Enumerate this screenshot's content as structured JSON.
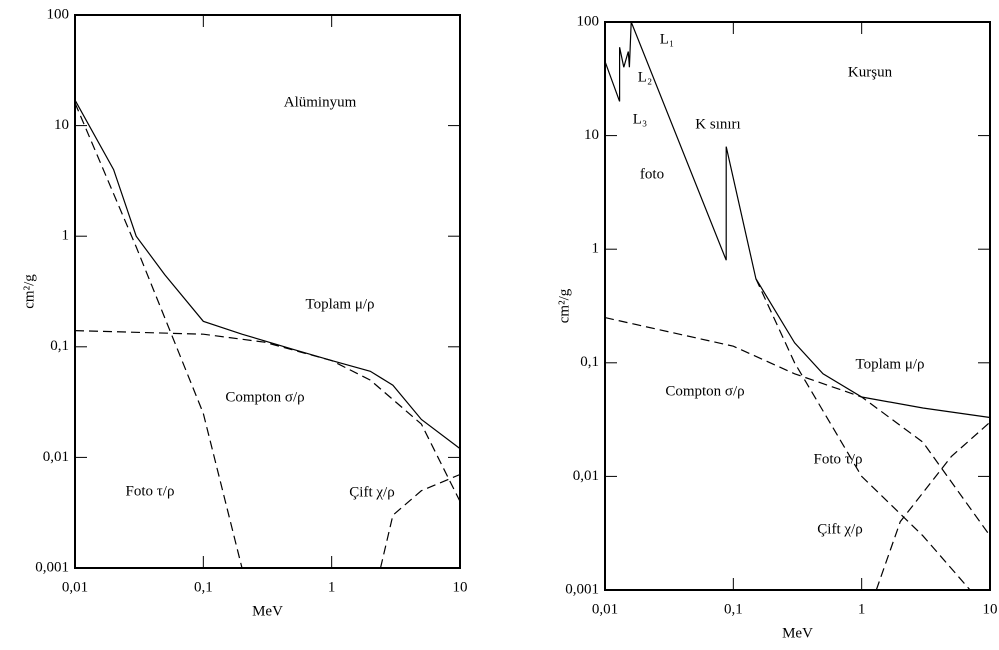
{
  "chart_data": [
    {
      "type": "line",
      "log_x": true,
      "log_y": true,
      "x_label": "MeV",
      "y_label": "cm²/g",
      "annotations": [
        "Alüminyum"
      ],
      "xlim": [
        0.01,
        10
      ],
      "ylim": [
        0.001,
        100
      ],
      "xticks": [
        {
          "value": 0.01,
          "label": "0,01"
        },
        {
          "value": 0.1,
          "label": "0,1"
        },
        1,
        10
      ],
      "yticks": [
        {
          "value": 0.001,
          "label": "0,001"
        },
        {
          "value": 0.01,
          "label": "0,01"
        },
        {
          "value": 0.1,
          "label": "0,1"
        },
        1,
        10,
        100
      ],
      "series": [
        {
          "name": "Toplam μ/ρ",
          "color": "#000000",
          "dashed": false,
          "x": [
            0.01,
            0.02,
            0.03,
            0.05,
            0.1,
            0.2,
            0.5,
            1,
            2,
            3,
            5,
            10
          ],
          "values": [
            17,
            4,
            1.0,
            0.45,
            0.17,
            0.13,
            0.095,
            0.075,
            0.06,
            0.045,
            0.022,
            0.012
          ]
        },
        {
          "name": "Compton σ/ρ",
          "color": "#000000",
          "dashed": true,
          "x": [
            0.01,
            0.1,
            0.3,
            1,
            2,
            5,
            10
          ],
          "values": [
            0.14,
            0.13,
            0.11,
            0.075,
            0.05,
            0.02,
            0.004
          ]
        },
        {
          "name": "Foto τ/ρ",
          "color": "#000000",
          "dashed": true,
          "x": [
            0.01,
            0.03,
            0.1,
            0.2
          ],
          "values": [
            16,
            0.8,
            0.025,
            0.001
          ]
        },
        {
          "name": "Çift χ/ρ",
          "color": "#000000",
          "dashed": true,
          "x": [
            2.4,
            3,
            5,
            10
          ],
          "values": [
            0.001,
            0.003,
            0.005,
            0.007
          ]
        }
      ]
    },
    {
      "type": "line",
      "log_x": true,
      "log_y": true,
      "x_label": "MeV",
      "y_label": "cm²/g",
      "annotations": [
        "Kurşun",
        "L₁",
        "L₂",
        "L₃",
        "K sınırı",
        "foto"
      ],
      "xlim": [
        0.01,
        10
      ],
      "ylim": [
        0.001,
        100
      ],
      "xticks": [
        {
          "value": 0.01,
          "label": "0,01"
        },
        {
          "value": 0.1,
          "label": "0,1"
        },
        1,
        10
      ],
      "yticks": [
        {
          "value": 0.001,
          "label": "0,001"
        },
        {
          "value": 0.01,
          "label": "0,01"
        },
        {
          "value": 0.1,
          "label": "0,1"
        },
        1,
        10,
        100
      ],
      "series": [
        {
          "name": "Toplam μ/ρ",
          "color": "#000000",
          "dashed": false,
          "x": [
            0.01,
            0.013,
            0.013,
            0.014,
            0.0152,
            0.0155,
            0.016,
            0.088,
            0.088,
            0.15,
            0.3,
            0.5,
            1,
            3,
            10
          ],
          "values": [
            45,
            20,
            60,
            40,
            55,
            40,
            100,
            0.8,
            8,
            0.55,
            0.15,
            0.08,
            0.05,
            0.04,
            0.033
          ]
        },
        {
          "name": "Compton σ/ρ",
          "color": "#000000",
          "dashed": true,
          "x": [
            0.01,
            0.1,
            0.3,
            1,
            3,
            10
          ],
          "values": [
            0.25,
            0.14,
            0.08,
            0.05,
            0.02,
            0.003
          ]
        },
        {
          "name": "Foto τ/ρ",
          "color": "#000000",
          "dashed": true,
          "x": [
            0.15,
            0.3,
            1,
            3,
            7
          ],
          "values": [
            0.55,
            0.1,
            0.01,
            0.003,
            0.001
          ]
        },
        {
          "name": "Çift χ/ρ",
          "color": "#000000",
          "dashed": true,
          "x": [
            1.3,
            2,
            5,
            10
          ],
          "values": [
            0.001,
            0.004,
            0.015,
            0.03
          ]
        }
      ]
    }
  ]
}
